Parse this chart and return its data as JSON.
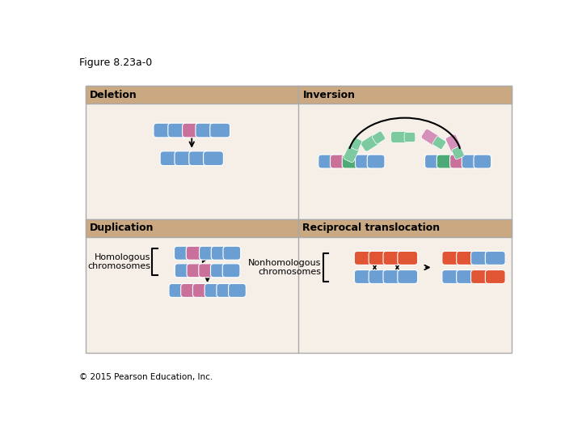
{
  "title": "Figure 8.23a-0",
  "copyright": "© 2015 Pearson Education, Inc.",
  "bg_color": "#ffffff",
  "panel_bg": "#c9a882",
  "cell_bg": "#f5efe8",
  "border_color": "#aaaaaa",
  "blue": "#6b9fd4",
  "blue_light": "#8ab4df",
  "pink": "#c9719a",
  "green": "#4daa77",
  "green_light": "#7dc9a0",
  "red": "#e05533",
  "purple_pink": "#d490b8",
  "labels": {
    "deletion": "Deletion",
    "inversion": "Inversion",
    "duplication": "Duplication",
    "reciprocal": "Reciprocal translocation",
    "homologous": "Homologous\nchromosomes",
    "nonhomologous": "Nonhomologous\nchromosomes"
  }
}
